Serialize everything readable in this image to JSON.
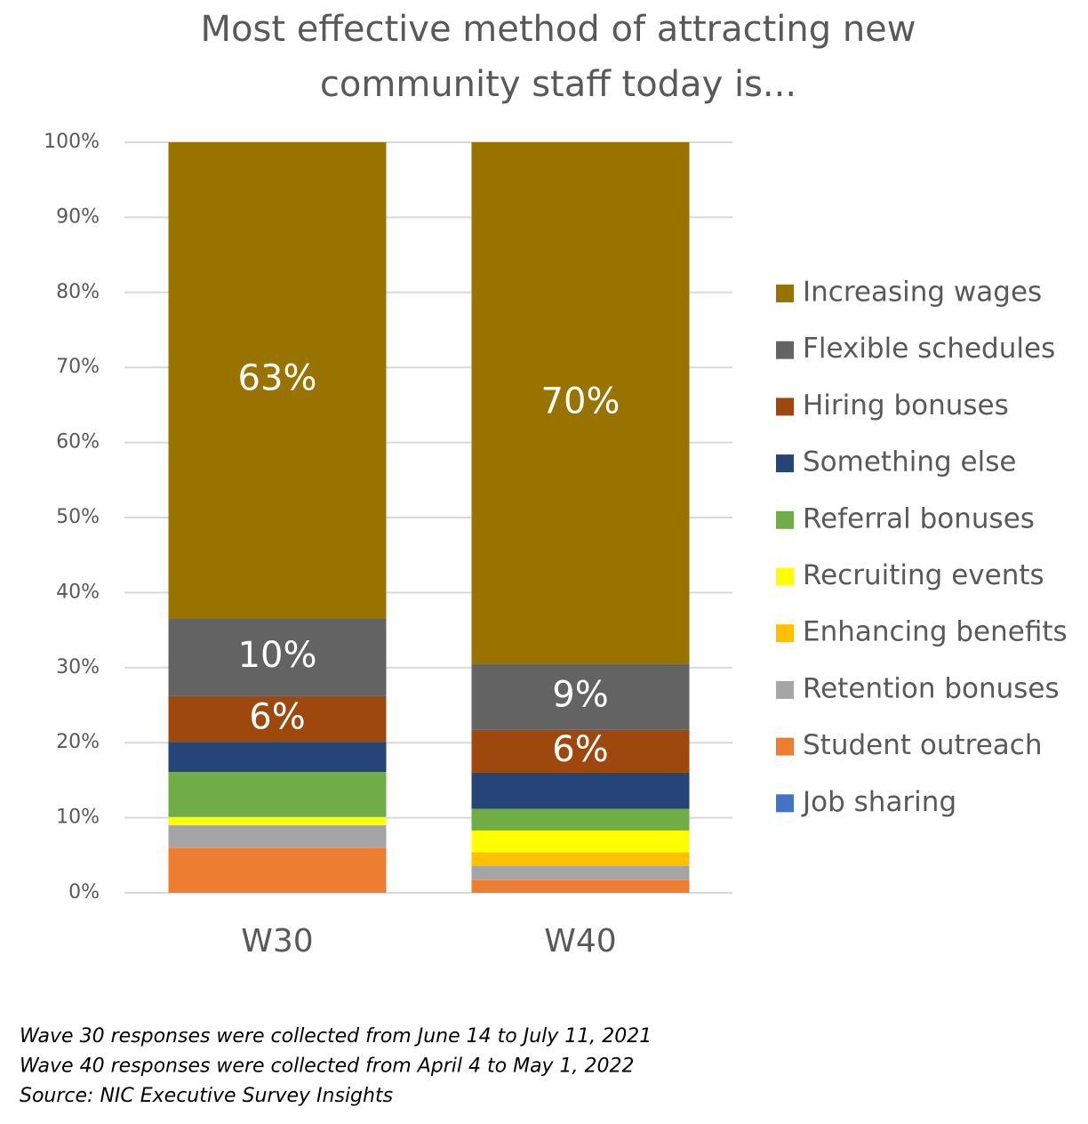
{
  "chart_data": {
    "type": "stacked_bar",
    "title": [
      "Most effective method of attracting new",
      "community staff today is..."
    ],
    "categories": [
      "W30",
      "W40"
    ],
    "series": [
      {
        "name": "Increasing wages",
        "color": "#997300",
        "values": [
          63.4,
          69.5
        ],
        "value_labels": [
          "63%",
          "70%"
        ]
      },
      {
        "name": "Flexible schedules",
        "color": "#636363",
        "values": [
          10.4,
          8.8
        ],
        "value_labels": [
          "10%",
          "9%"
        ]
      },
      {
        "name": "Hiring bonuses",
        "color": "#9e480e",
        "values": [
          6.1,
          5.7
        ],
        "value_labels": [
          "6%",
          "6%"
        ]
      },
      {
        "name": "Something else",
        "color": "#264478",
        "values": [
          4.0,
          4.8
        ]
      },
      {
        "name": "Referral bonuses",
        "color": "#70ad47",
        "values": [
          6.0,
          2.9
        ]
      },
      {
        "name": "Recruiting events",
        "color": "#ffff00",
        "values": [
          1.1,
          2.9
        ]
      },
      {
        "name": "Enhancing benefits",
        "color": "#ffc000",
        "values": [
          0,
          1.8
        ]
      },
      {
        "name": "Retention bonuses",
        "color": "#a5a5a5",
        "values": [
          3.0,
          1.9
        ]
      },
      {
        "name": "Student outreach",
        "color": "#ed7d31",
        "values": [
          6.0,
          1.7
        ]
      },
      {
        "name": "Job sharing",
        "color": "#4472c4",
        "values": [
          0,
          0
        ]
      }
    ],
    "ylim": [
      0,
      100
    ],
    "yticks": [
      {
        "value": 0,
        "label": "0%"
      },
      {
        "value": 10,
        "label": "10%"
      },
      {
        "value": 20,
        "label": "20%"
      },
      {
        "value": 30,
        "label": "30%"
      },
      {
        "value": 40,
        "label": "40%"
      },
      {
        "value": 50,
        "label": "50%"
      },
      {
        "value": 60,
        "label": "60%"
      },
      {
        "value": 70,
        "label": "70%"
      },
      {
        "value": 80,
        "label": "80%"
      },
      {
        "value": 90,
        "label": "90%"
      },
      {
        "value": 100,
        "label": "100%"
      }
    ],
    "grid": true,
    "legend": "right",
    "notes": [
      "Wave 30 responses were collected from June 14 to July 11, 2021",
      "Wave 40 responses were collected from April 4 to May 1, 2022",
      "Source: NIC Executive Survey Insights"
    ]
  }
}
